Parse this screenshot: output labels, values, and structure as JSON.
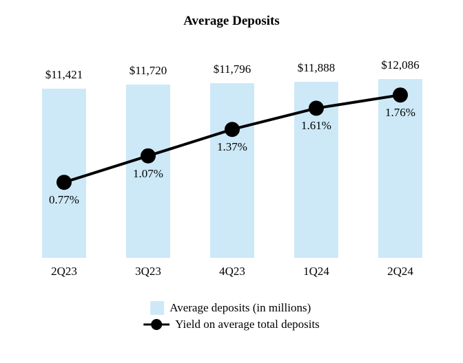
{
  "title": "Average Deposits",
  "colors": {
    "bar_fill": "#cde9f8",
    "line_color": "#000000",
    "text_color": "#000000",
    "background": "#ffffff"
  },
  "chart_data": {
    "type": "bar",
    "title": "Average Deposits",
    "categories": [
      "2Q23",
      "3Q23",
      "4Q23",
      "1Q24",
      "2Q24"
    ],
    "series": [
      {
        "name": "Average deposits (in millions)",
        "type": "bar",
        "values": [
          11421,
          11720,
          11796,
          11888,
          12086
        ],
        "labels": [
          "$11,421",
          "$11,720",
          "$11,796",
          "$11,888",
          "$12,086"
        ],
        "color": "#cde9f8"
      },
      {
        "name": "Yield on average total deposits",
        "type": "line",
        "values": [
          0.77,
          1.07,
          1.37,
          1.61,
          1.76
        ],
        "labels": [
          "0.77%",
          "1.07%",
          "1.37%",
          "1.61%",
          "1.76%"
        ],
        "color": "#000000"
      }
    ],
    "xlabel": "",
    "ylabel": "",
    "grid": false,
    "legend_position": "bottom"
  },
  "legend": {
    "bar_label": "Average deposits (in millions)",
    "line_label": "Yield on average total deposits"
  }
}
